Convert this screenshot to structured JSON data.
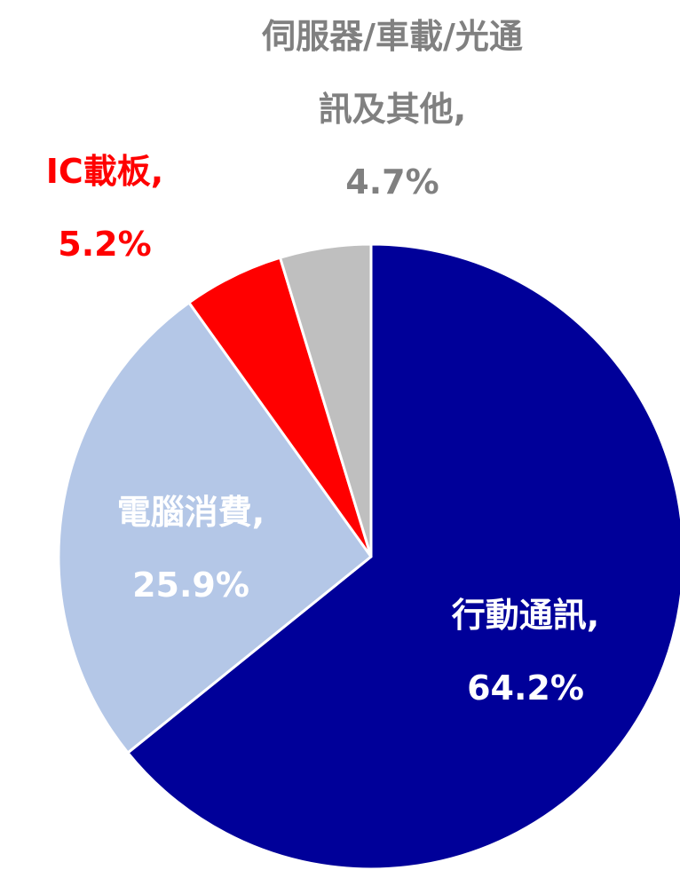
{
  "chart_data": {
    "type": "pie",
    "categories": [
      "行動通訊,",
      "電腦消費,",
      "IC載板,",
      "伺服器/車載/光通訊及其他,"
    ],
    "values": [
      64.2,
      25.9,
      5.2,
      4.7
    ],
    "value_labels": [
      "64.2%",
      "25.9%",
      "5.2%",
      "4.7%"
    ],
    "colors": [
      "#000099",
      "#b4c7e7",
      "#ff0000",
      "#bfbfbf"
    ],
    "label_colors": [
      "#ffffff",
      "#ffffff",
      "#ff0000",
      "#808080"
    ]
  }
}
